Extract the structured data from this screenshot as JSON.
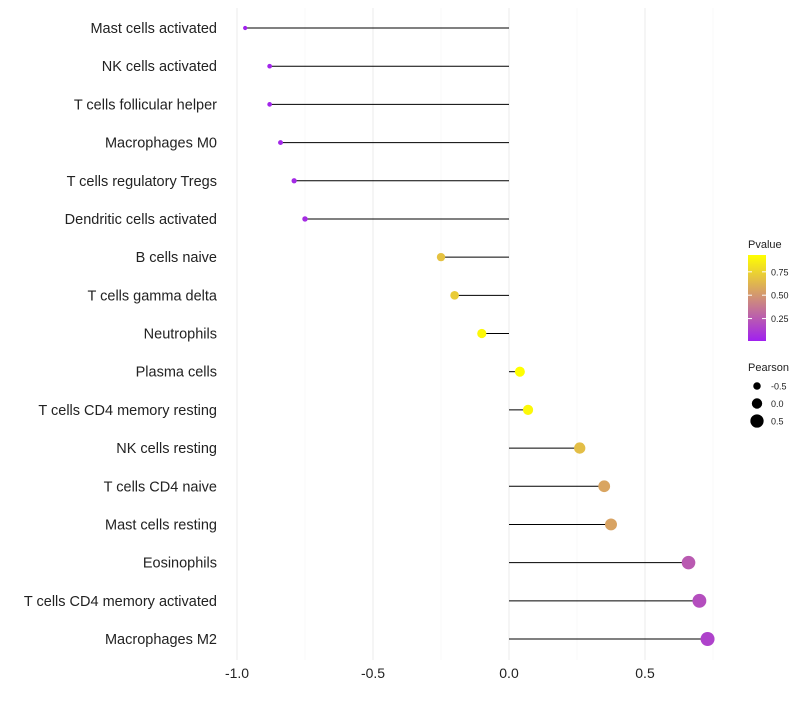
{
  "chart_data": {
    "type": "lollipop",
    "title": "",
    "xlabel": "",
    "ylabel": "",
    "xlim": [
      -1.05,
      0.8
    ],
    "xticks": [
      -1.0,
      -0.5,
      0.0,
      0.5
    ],
    "xtick_labels": [
      "-1.0",
      "-0.5",
      "0.0",
      "0.5"
    ],
    "grid": true,
    "categories": [
      "Mast cells activated",
      "NK cells activated",
      "T cells follicular helper",
      "Macrophages M0",
      "T cells regulatory  Tregs ",
      "Dendritic cells activated",
      "B cells naive",
      "T cells gamma delta",
      "Neutrophils",
      "Plasma cells",
      "T cells CD4 memory resting",
      "NK cells resting",
      "T cells CD4 naive",
      "Mast cells resting",
      "Eosinophils",
      "T cells CD4 memory activated",
      "Macrophages M2"
    ],
    "pearson": [
      -0.97,
      -0.88,
      -0.88,
      -0.84,
      -0.79,
      -0.75,
      -0.25,
      -0.2,
      -0.1,
      0.04,
      0.07,
      0.26,
      0.35,
      0.375,
      0.66,
      0.7,
      0.73
    ],
    "pvalue": [
      0.02,
      0.03,
      0.03,
      0.04,
      0.05,
      0.06,
      0.68,
      0.72,
      0.9,
      0.93,
      0.9,
      0.66,
      0.56,
      0.55,
      0.25,
      0.2,
      0.15
    ],
    "legend": {
      "placement": "right",
      "color_title": "Pvalue",
      "color_ticks": [
        0.25,
        0.5,
        0.75
      ],
      "color_tick_labels": [
        "0.25",
        "0.50",
        "0.75"
      ],
      "color_range": [
        0.01,
        0.93
      ],
      "color_low": "#A020F0",
      "color_high": "#FFFF00",
      "size_title": "Pearson",
      "size_values": [
        -0.5,
        0.0,
        0.5
      ],
      "size_labels": [
        "-0.5",
        "0.0",
        "0.5"
      ]
    }
  }
}
